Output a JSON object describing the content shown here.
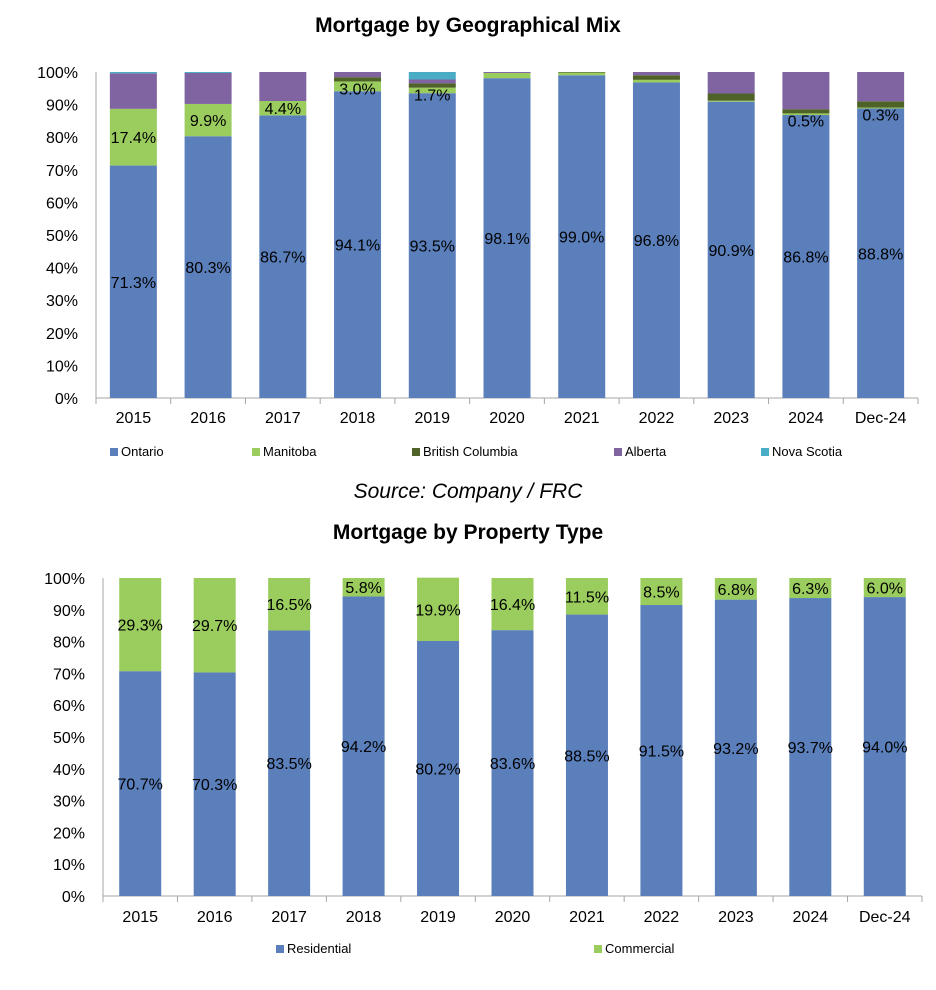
{
  "charts": [
    {
      "title": "Mortgage by Geographical Mix",
      "legend_position": "bottom",
      "chart_data": {
        "type": "bar",
        "stacked": true,
        "ylim": [
          0,
          100
        ],
        "yticks": [
          "0%",
          "10%",
          "20%",
          "30%",
          "40%",
          "50%",
          "60%",
          "70%",
          "80%",
          "90%",
          "100%"
        ],
        "categories": [
          "2015",
          "2016",
          "2017",
          "2018",
          "2019",
          "2020",
          "2021",
          "2022",
          "2023",
          "2024",
          "Dec-24"
        ],
        "series": [
          {
            "name": "Ontario",
            "color": "#5a7fbb",
            "values": [
              71.3,
              80.3,
              86.7,
              94.1,
              93.5,
              98.1,
              99.0,
              96.8,
              90.9,
              86.8,
              88.8
            ],
            "labels": [
              "71.3%",
              "80.3%",
              "86.7%",
              "94.1%",
              "93.5%",
              "98.1%",
              "99.0%",
              "96.8%",
              "90.9%",
              "86.8%",
              "88.8%"
            ]
          },
          {
            "name": "Manitoba",
            "color": "#9acc5e",
            "values": [
              17.4,
              9.9,
              4.4,
              3.0,
              1.7,
              1.6,
              0.8,
              0.8,
              0.3,
              0.5,
              0.3
            ],
            "labels": [
              "17.4%",
              "9.9%",
              "4.4%",
              "3.0%",
              "1.7%",
              "",
              "",
              "",
              "",
              "0.5%",
              "0.3%"
            ]
          },
          {
            "name": "British Columbia",
            "color": "#4f6228",
            "values": [
              0,
              0,
              0,
              1.3,
              1.3,
              0,
              0.2,
              1.4,
              2.2,
              1.3,
              1.9
            ],
            "labels": [
              "",
              "",
              "",
              "",
              "",
              "",
              "",
              "",
              "",
              "",
              ""
            ]
          },
          {
            "name": "Alberta",
            "color": "#8064a2",
            "values": [
              10.9,
              9.5,
              8.9,
              1.6,
              1.2,
              0.3,
              0,
              1.0,
              6.6,
              11.4,
              9.0
            ],
            "labels": [
              "",
              "",
              "",
              "",
              "",
              "",
              "",
              "",
              "",
              "",
              ""
            ]
          },
          {
            "name": "Nova Scotia",
            "color": "#4bacc6",
            "values": [
              0.4,
              0.3,
              0,
              0,
              2.3,
              0,
              0,
              0,
              0,
              0,
              0
            ],
            "labels": [
              "",
              "",
              "",
              "",
              "",
              "",
              "",
              "",
              "",
              "",
              ""
            ]
          }
        ]
      }
    },
    {
      "title": "Mortgage by Property Type",
      "legend_position": "bottom",
      "chart_data": {
        "type": "bar",
        "stacked": true,
        "ylim": [
          0,
          100
        ],
        "yticks": [
          "0%",
          "10%",
          "20%",
          "30%",
          "40%",
          "50%",
          "60%",
          "70%",
          "80%",
          "90%",
          "100%"
        ],
        "categories": [
          "2015",
          "2016",
          "2017",
          "2018",
          "2019",
          "2020",
          "2021",
          "2022",
          "2023",
          "2024",
          "Dec-24"
        ],
        "series": [
          {
            "name": "Residential",
            "color": "#5a7fbb",
            "values": [
              70.7,
              70.3,
              83.5,
              94.2,
              80.2,
              83.6,
              88.5,
              91.5,
              93.2,
              93.7,
              94.0
            ],
            "labels": [
              "70.7%",
              "70.3%",
              "83.5%",
              "94.2%",
              "80.2%",
              "83.6%",
              "88.5%",
              "91.5%",
              "93.2%",
              "93.7%",
              "94.0%"
            ]
          },
          {
            "name": "Commercial",
            "color": "#9acc5e",
            "values": [
              29.3,
              29.7,
              16.5,
              5.8,
              19.9,
              16.4,
              11.5,
              8.5,
              6.8,
              6.3,
              6.0
            ],
            "labels": [
              "29.3%",
              "29.7%",
              "16.5%",
              "5.8%",
              "19.9%",
              "16.4%",
              "11.5%",
              "8.5%",
              "6.8%",
              "6.3%",
              "6.0%"
            ]
          }
        ]
      }
    }
  ],
  "source": "Source: Company / FRC"
}
